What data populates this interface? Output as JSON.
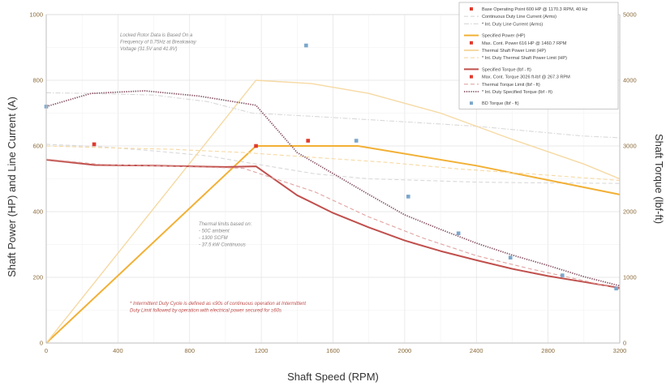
{
  "chart_data": {
    "type": "line",
    "xlabel": "Shaft Speed (RPM)",
    "ylabel": "Shaft Power (HP) and  Line Current (A)",
    "y2label": "Shaft Torque (lbf-ft)",
    "xlim": [
      0,
      3200
    ],
    "ylim": [
      0,
      1000
    ],
    "y2lim": [
      0,
      5000
    ],
    "x_ticks": [
      "0",
      "400",
      "800",
      "1200",
      "1600",
      "2000",
      "2400",
      "2800",
      "3200"
    ],
    "y_ticks": [
      "0",
      "200",
      "400",
      "600",
      "800",
      "1000"
    ],
    "y2_ticks": [
      "0",
      "1000",
      "2000",
      "3000",
      "4000",
      "5000"
    ],
    "grid": true,
    "legend_position": "top-right",
    "series": [
      {
        "name": "Continuous Duty Line Current (Arms)",
        "axis": "left",
        "color": "#d9d9d9",
        "style": "dash",
        "x": [
          0,
          300,
          600,
          900,
          1170,
          1500,
          1800,
          2100,
          2400,
          2700,
          3000,
          3200
        ],
        "y": [
          605,
          598,
          585,
          570,
          545,
          515,
          500,
          495,
          490,
          488,
          487,
          486
        ]
      },
      {
        "name": "* Int. Duty Line Current (Arms)",
        "axis": "left",
        "color": "#d9d9d9",
        "style": "dashdot",
        "x": [
          0,
          250,
          600,
          900,
          1150,
          1500,
          1800,
          2100,
          2400,
          2700,
          3000,
          3200
        ],
        "y": [
          762,
          760,
          755,
          735,
          700,
          690,
          680,
          670,
          660,
          645,
          630,
          625
        ]
      },
      {
        "name": "Specified Power (HP)",
        "axis": "left",
        "color": "#f2b035",
        "style": "solid",
        "x": [
          0,
          1170,
          1740,
          2400,
          3200
        ],
        "y": [
          0,
          600,
          600,
          540,
          452
        ]
      },
      {
        "name": "Thermal Shaft Power Limit (HP)",
        "axis": "left",
        "color": "#f6d9a3",
        "style": "solid",
        "x": [
          0,
          1170,
          1480,
          1800,
          2200,
          2600,
          3000,
          3200
        ],
        "y": [
          0,
          800,
          790,
          760,
          700,
          620,
          545,
          500
        ]
      },
      {
        "name": "* Int. Duty Thermal Shaft Power Limit (HP)",
        "axis": "left",
        "color": "#f6d9a3",
        "style": "dash",
        "x": [
          0,
          300,
          700,
          1100,
          1500,
          1900,
          2300,
          2700,
          3200
        ],
        "y": [
          600,
          595,
          590,
          580,
          565,
          550,
          530,
          515,
          495
        ]
      },
      {
        "name": "Specified Torque (lbf - ft)",
        "axis": "right",
        "color": "#c0504d",
        "style": "solid",
        "x": [
          0,
          270,
          600,
          1000,
          1170,
          1400,
          1600,
          1800,
          2000,
          2200,
          2400,
          2600,
          2800,
          3000,
          3200
        ],
        "y": [
          2790,
          2710,
          2700,
          2680,
          2690,
          2250,
          1980,
          1760,
          1560,
          1400,
          1260,
          1130,
          1020,
          930,
          840
        ]
      },
      {
        "name": "Thermal Torque Limit (lbf - ft)",
        "axis": "right",
        "color": "#e0a3a1",
        "style": "dash",
        "x": [
          0,
          300,
          700,
          1100,
          1500,
          1800,
          2100,
          2400,
          2700,
          3000,
          3200
        ],
        "y": [
          2800,
          2720,
          2690,
          2660,
          2300,
          1920,
          1600,
          1330,
          1130,
          950,
          820
        ]
      },
      {
        "name": "* Int. Duty Specified Torque (lbf - ft)",
        "axis": "right",
        "color": "#8b5a6a",
        "style": "dot",
        "x": [
          0,
          250,
          550,
          850,
          1170,
          1400,
          1600,
          1800,
          2000,
          2200,
          2400,
          2600,
          2800,
          3000,
          3200
        ],
        "y": [
          3600,
          3800,
          3840,
          3760,
          3620,
          2900,
          2580,
          2260,
          1950,
          1730,
          1520,
          1340,
          1180,
          1010,
          870
        ]
      },
      {
        "name": "BD Torque (lbf - ft)",
        "axis": "right",
        "color": "#7ba7cc",
        "style": "marker",
        "x": [
          0,
          1450,
          1730,
          2020,
          2300,
          2590,
          2880,
          3180
        ],
        "y": [
          3600,
          4530,
          3080,
          2230,
          1670,
          1300,
          1030,
          830
        ]
      }
    ],
    "points": [
      {
        "name": "Base Operating Point 600 HP @ 1170.3 RPM, 40 Hz",
        "axis": "left",
        "color": "#e03a2e",
        "x": 1170.3,
        "y": 600
      },
      {
        "name": "Max. Cont. Power 616 HP @ 1460.7 RPM",
        "axis": "left",
        "color": "#e03a2e",
        "x": 1460.7,
        "y": 616
      },
      {
        "name": "Max. Cont. Torque 3026 ft-lbf @ 267.3 RPM",
        "axis": "right",
        "color": "#e03a2e",
        "x": 267.3,
        "y": 3026
      }
    ],
    "legend": [
      "Base Operating Point 600 HP @ 1170.3 RPM, 40 Hz",
      "Continuous Duty Line Current (Arms)",
      "* Int. Duty Line Current (Arms)",
      "Specified Power (HP)",
      "Max. Cont. Power 616 HP @ 1460.7 RPM",
      "Thermal Shaft Power Limit (HP)",
      "* Int. Duty Thermal Shaft Power Limit (HP)",
      "Specified Torque (lbf - ft)",
      "Max. Cont. Torque 3026 ft-lbf @ 267.3 RPM",
      "Thermal Torque Limit (lbf - ft)",
      "* Int. Duty Specified Torque (lbf - ft)",
      "BD Torque (lbf - ft)"
    ],
    "annotations": [
      {
        "id": "locked",
        "lines": [
          "Locked Rotor Data is Based On a",
          "Frequency of 0.75Hz at Breakaway",
          "Voltage (31.5V and 41.8V)"
        ]
      },
      {
        "id": "thermal",
        "lines": [
          "Thermal limits based on:",
          "- 50C ambient",
          "- 1300 SCFM",
          "- 37.5 kW Continuous"
        ]
      },
      {
        "id": "intermittent",
        "lines": [
          "* Intermittent Duty Cycle is defined as ≤90s of continuous operation at Intermittent",
          "Duty Limit followed by operation with electrical power secured for ≥60s"
        ]
      }
    ]
  }
}
